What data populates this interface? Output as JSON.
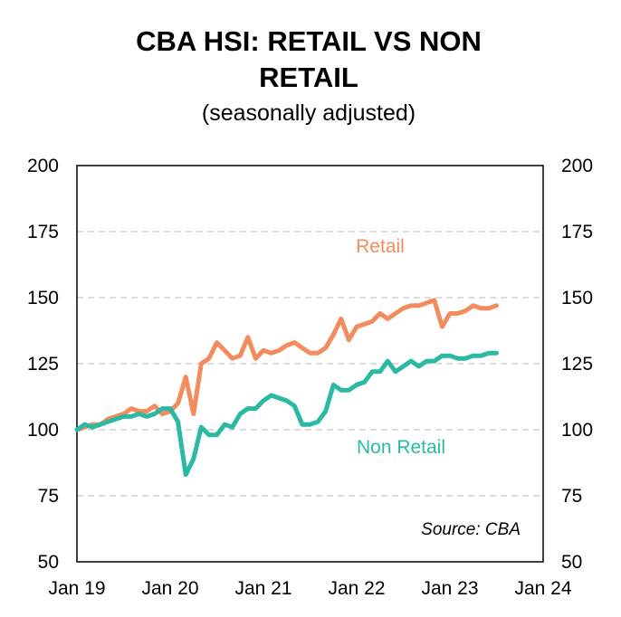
{
  "chart_data": {
    "type": "line",
    "title_lines": [
      "CBA HSI: RETAIL VS NON",
      "RETAIL"
    ],
    "subtitle": "(seasonally adjusted)",
    "source": "Source: CBA",
    "xlim": [
      "2019-01",
      "2024-01"
    ],
    "ylim": [
      50,
      200
    ],
    "y_ticks": [
      "50",
      "75",
      "100",
      "125",
      "150",
      "175",
      "200"
    ],
    "x_ticks": [
      "Jan 19",
      "Jan 20",
      "Jan 21",
      "Jan 22",
      "Jan 23",
      "Jan 24"
    ],
    "grid": "horizontal dashed",
    "axes": "left and right",
    "series": [
      {
        "name": "Retail",
        "color": "#F28C5E",
        "dates": [
          "2019-01",
          "2019-02",
          "2019-03",
          "2019-04",
          "2019-05",
          "2019-06",
          "2019-07",
          "2019-08",
          "2019-09",
          "2019-10",
          "2019-11",
          "2019-12",
          "2020-01",
          "2020-02",
          "2020-03",
          "2020-04",
          "2020-05",
          "2020-06",
          "2020-07",
          "2020-08",
          "2020-09",
          "2020-10",
          "2020-11",
          "2020-12",
          "2021-01",
          "2021-02",
          "2021-03",
          "2021-04",
          "2021-05",
          "2021-06",
          "2021-07",
          "2021-08",
          "2021-09",
          "2021-10",
          "2021-11",
          "2021-12",
          "2022-01",
          "2022-02",
          "2022-03",
          "2022-04",
          "2022-05",
          "2022-06",
          "2022-07",
          "2022-08",
          "2022-09",
          "2022-10",
          "2022-11",
          "2022-12",
          "2023-01",
          "2023-02",
          "2023-03",
          "2023-04",
          "2023-05",
          "2023-06",
          "2023-07"
        ],
        "values": [
          100,
          101,
          102,
          102,
          104,
          105,
          106,
          108,
          107,
          107,
          109,
          106,
          107,
          110,
          120,
          106,
          125,
          127,
          133,
          130,
          127,
          128,
          135,
          127,
          130,
          129,
          130,
          132,
          133,
          131,
          129,
          129,
          131,
          136,
          142,
          134,
          139,
          140,
          141,
          144,
          142,
          144,
          146,
          147,
          147,
          148,
          149,
          139,
          144,
          144,
          145,
          147,
          146,
          146,
          147
        ]
      },
      {
        "name": "Non Retail",
        "color": "#2BB9A4",
        "dates": [
          "2019-01",
          "2019-02",
          "2019-03",
          "2019-04",
          "2019-05",
          "2019-06",
          "2019-07",
          "2019-08",
          "2019-09",
          "2019-10",
          "2019-11",
          "2019-12",
          "2020-01",
          "2020-02",
          "2020-03",
          "2020-04",
          "2020-05",
          "2020-06",
          "2020-07",
          "2020-08",
          "2020-09",
          "2020-10",
          "2020-11",
          "2020-12",
          "2021-01",
          "2021-02",
          "2021-03",
          "2021-04",
          "2021-05",
          "2021-06",
          "2021-07",
          "2021-08",
          "2021-09",
          "2021-10",
          "2021-11",
          "2021-12",
          "2022-01",
          "2022-02",
          "2022-03",
          "2022-04",
          "2022-05",
          "2022-06",
          "2022-07",
          "2022-08",
          "2022-09",
          "2022-10",
          "2022-11",
          "2022-12",
          "2023-01",
          "2023-02",
          "2023-03",
          "2023-04",
          "2023-05",
          "2023-06",
          "2023-07"
        ],
        "values": [
          100,
          102,
          101,
          102,
          103,
          104,
          105,
          105,
          106,
          105,
          106,
          108,
          108,
          103,
          83,
          89,
          101,
          98,
          98,
          102,
          101,
          106,
          108,
          108,
          111,
          113,
          112,
          111,
          109,
          102,
          102,
          103,
          107,
          117,
          115,
          115,
          117,
          118,
          122,
          122,
          126,
          122,
          124,
          126,
          124,
          126,
          126,
          128,
          128,
          127,
          127,
          128,
          128,
          129,
          129
        ]
      }
    ]
  }
}
